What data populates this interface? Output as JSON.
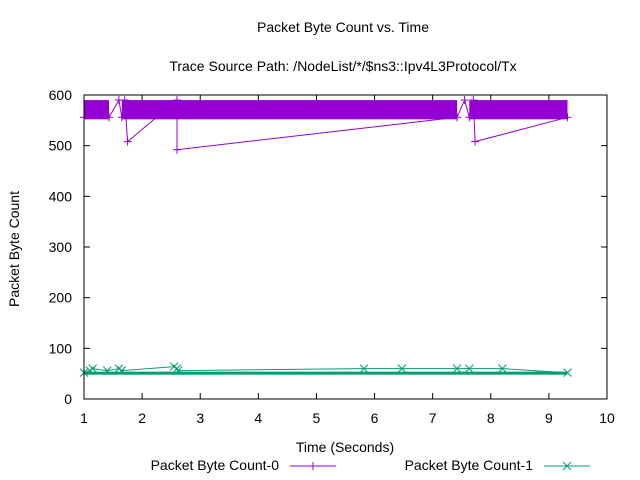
{
  "chart_data": {
    "type": "line",
    "title": "Packet Byte Count vs. Time",
    "subtitle": "Trace Source Path: /NodeList/*/$ns3::Ipv4L3Protocol/Tx",
    "xlabel": "Time (Seconds)",
    "ylabel": "Packet Byte Count",
    "xlim": [
      1,
      10
    ],
    "ylim": [
      0,
      600
    ],
    "xticks": [
      "1",
      "2",
      "3",
      "4",
      "5",
      "6",
      "7",
      "8",
      "9",
      "10"
    ],
    "yticks": [
      "0",
      "100",
      "200",
      "300",
      "400",
      "500",
      "600"
    ],
    "legend_position": "bottom",
    "series": [
      {
        "name": "Packet Byte Count-0",
        "color": "#9400d3",
        "marker": "plus",
        "dense_bands": [
          {
            "x_start": 1.0,
            "x_end": 1.43,
            "y_low": 552,
            "y_high": 590
          },
          {
            "x_start": 1.65,
            "x_end": 7.42,
            "y_low": 552,
            "y_high": 590
          },
          {
            "x_start": 7.63,
            "x_end": 9.32,
            "y_low": 552,
            "y_high": 590
          }
        ],
        "points": [
          {
            "x": 1.0,
            "y": 556
          },
          {
            "x": 1.43,
            "y": 556
          },
          {
            "x": 1.6,
            "y": 590
          },
          {
            "x": 1.65,
            "y": 556
          },
          {
            "x": 1.7,
            "y": 590
          },
          {
            "x": 1.75,
            "y": 508
          },
          {
            "x": 2.6,
            "y": 590
          },
          {
            "x": 2.6,
            "y": 492
          },
          {
            "x": 7.42,
            "y": 556
          },
          {
            "x": 7.55,
            "y": 590
          },
          {
            "x": 7.63,
            "y": 556
          },
          {
            "x": 7.7,
            "y": 590
          },
          {
            "x": 7.73,
            "y": 508
          },
          {
            "x": 9.32,
            "y": 556
          }
        ]
      },
      {
        "name": "Packet Byte Count-1",
        "color": "#009e73",
        "marker": "x",
        "dense_bands": [
          {
            "x_start": 1.0,
            "x_end": 9.32,
            "y_low": 48,
            "y_high": 54
          }
        ],
        "points": [
          {
            "x": 1.0,
            "y": 52
          },
          {
            "x": 1.1,
            "y": 56
          },
          {
            "x": 1.15,
            "y": 60
          },
          {
            "x": 1.4,
            "y": 56
          },
          {
            "x": 1.6,
            "y": 60
          },
          {
            "x": 1.65,
            "y": 56
          },
          {
            "x": 2.55,
            "y": 64
          },
          {
            "x": 2.6,
            "y": 60
          },
          {
            "x": 2.62,
            "y": 56
          },
          {
            "x": 5.82,
            "y": 60
          },
          {
            "x": 6.47,
            "y": 60
          },
          {
            "x": 7.42,
            "y": 60
          },
          {
            "x": 7.63,
            "y": 60
          },
          {
            "x": 8.2,
            "y": 60
          },
          {
            "x": 9.32,
            "y": 52
          }
        ]
      }
    ]
  }
}
